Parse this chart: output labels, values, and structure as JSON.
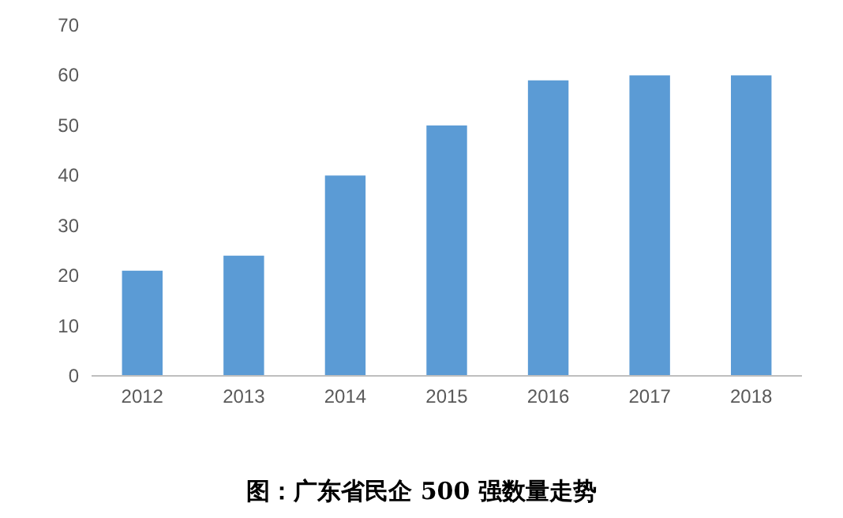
{
  "chart_data": {
    "type": "bar",
    "title": "图：广东省民企 500 强数量走势",
    "categories": [
      "2012",
      "2013",
      "2014",
      "2015",
      "2016",
      "2017",
      "2018"
    ],
    "values": [
      21,
      24,
      40,
      50,
      59,
      60,
      60
    ],
    "color": "#5b9bd5",
    "ylim": [
      0,
      70
    ],
    "yticks": [
      0,
      10,
      20,
      30,
      40,
      50,
      60,
      70
    ]
  }
}
